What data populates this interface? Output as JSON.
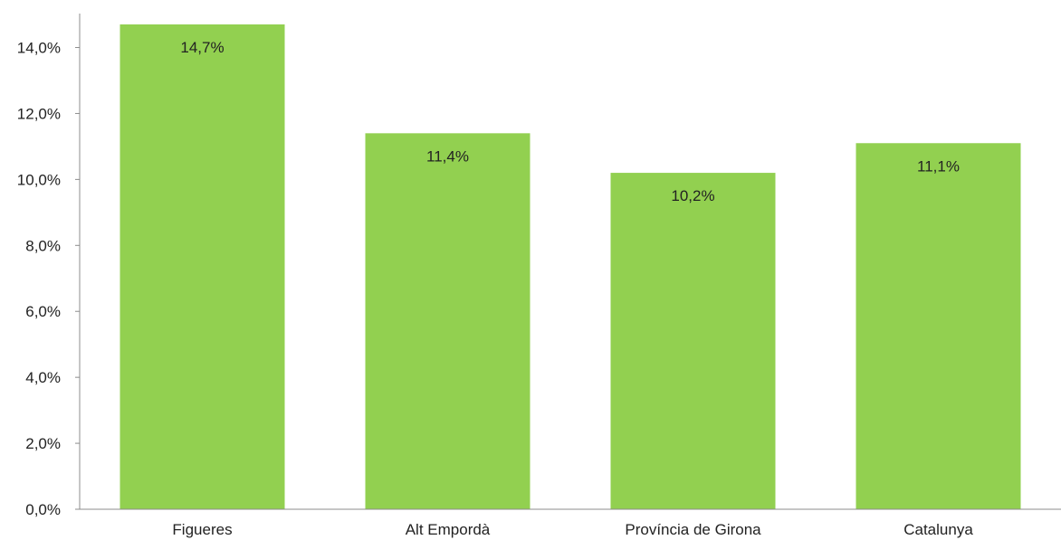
{
  "chart_data": {
    "type": "bar",
    "categories": [
      "Figueres",
      "Alt Empordà",
      "Província de Girona",
      "Catalunya"
    ],
    "values": [
      14.7,
      11.4,
      10.2,
      11.1
    ],
    "data_labels": [
      "14,7%",
      "11,4%",
      "10,2%",
      "11,1%"
    ],
    "title": "",
    "xlabel": "",
    "ylabel": "",
    "ylim": [
      0,
      14.7
    ],
    "yticks": [
      0,
      2,
      4,
      6,
      8,
      10,
      12,
      14
    ],
    "ytick_labels": [
      "0,0%",
      "2,0%",
      "4,0%",
      "6,0%",
      "8,0%",
      "10,0%",
      "12,0%",
      "14,0%"
    ],
    "grid": false,
    "legend": "none",
    "bar_color": "#92d050"
  }
}
